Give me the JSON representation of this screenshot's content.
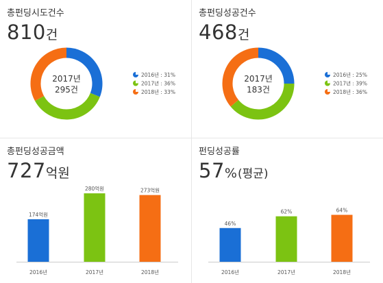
{
  "panels": [
    {
      "title": "총펀딩시도건수",
      "headline": {
        "value": "810",
        "unit": "건"
      },
      "center": {
        "year": "2017년",
        "value": "295건"
      },
      "legend": [
        {
          "label": "2016년 : 31%",
          "color": "#1a6fd6"
        },
        {
          "label": "2017년 : 36%",
          "color": "#7cc312"
        },
        {
          "label": "2018년 : 33%",
          "color": "#f56e14"
        }
      ]
    },
    {
      "title": "총펀딩성공건수",
      "headline": {
        "value": "468",
        "unit": "건"
      },
      "center": {
        "year": "2017년",
        "value": "183건"
      },
      "legend": [
        {
          "label": "2016년 : 25%",
          "color": "#1a6fd6"
        },
        {
          "label": "2017년 : 39%",
          "color": "#7cc312"
        },
        {
          "label": "2018년 : 36%",
          "color": "#f56e14"
        }
      ]
    },
    {
      "title": "총펀딩성공금액",
      "headline": {
        "value": "727",
        "unit": "억원"
      }
    },
    {
      "title": "펀딩성공률",
      "headline": {
        "value": "57",
        "unit": "%",
        "suffix": "(평균)"
      }
    }
  ],
  "chart_data": [
    {
      "type": "pie",
      "categories": [
        "2016년",
        "2017년",
        "2018년"
      ],
      "values": [
        31,
        36,
        33
      ],
      "colors": [
        "#1a6fd6",
        "#7cc312",
        "#f56e14"
      ],
      "legend_position": "right"
    },
    {
      "type": "pie",
      "categories": [
        "2016년",
        "2017년",
        "2018년"
      ],
      "values": [
        25,
        39,
        36
      ],
      "colors": [
        "#1a6fd6",
        "#7cc312",
        "#f56e14"
      ],
      "legend_position": "right"
    },
    {
      "type": "bar",
      "categories": [
        "2016년",
        "2017년",
        "2018년"
      ],
      "values": [
        174,
        280,
        273
      ],
      "value_labels": [
        "174억원",
        "280억원",
        "273억원"
      ],
      "colors": [
        "#1a6fd6",
        "#7cc312",
        "#f56e14"
      ],
      "ylim": [
        0,
        300
      ]
    },
    {
      "type": "bar",
      "categories": [
        "2016년",
        "2017년",
        "2018년"
      ],
      "values": [
        46,
        62,
        64
      ],
      "value_labels": [
        "46%",
        "62%",
        "64%"
      ],
      "colors": [
        "#1a6fd6",
        "#7cc312",
        "#f56e14"
      ],
      "ylim": [
        0,
        100
      ]
    }
  ]
}
